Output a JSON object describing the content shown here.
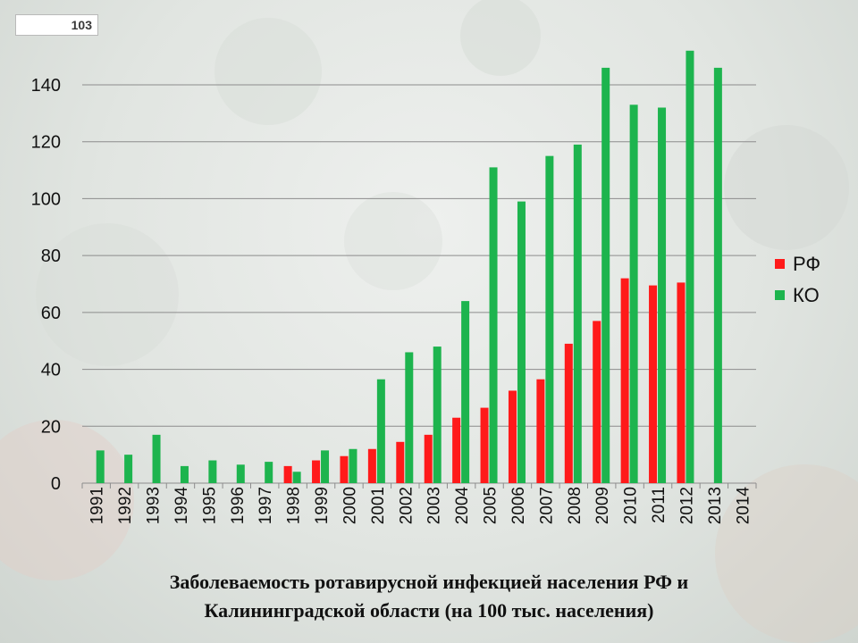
{
  "slide_number": "103",
  "caption": {
    "line1": "Заболеваемость ротавирусной инфекцией населения РФ и",
    "line2": "Калининградской области (на 100 тыс. населения)"
  },
  "colors": {
    "rf": "#ff1a1a",
    "ko": "#1db44e",
    "grid": "#8c8c8c"
  },
  "chart_data": {
    "type": "bar",
    "categories": [
      "1991",
      "1992",
      "1993",
      "1994",
      "1995",
      "1996",
      "1997",
      "1998",
      "1999",
      "2000",
      "2001",
      "2002",
      "2003",
      "2004",
      "2005",
      "2006",
      "2007",
      "2008",
      "2009",
      "2010",
      "2011",
      "2012",
      "2013",
      "2014"
    ],
    "series": [
      {
        "name": "РФ",
        "values": [
          null,
          null,
          null,
          null,
          null,
          null,
          null,
          6,
          8,
          9.5,
          12,
          14.5,
          17,
          23,
          26.5,
          32.5,
          36.5,
          49,
          57,
          72,
          69.5,
          70.5,
          null,
          null
        ]
      },
      {
        "name": "КО",
        "values": [
          11.5,
          10,
          17,
          6,
          8,
          6.5,
          7.5,
          4,
          11.5,
          12,
          36.5,
          46,
          48,
          64,
          111,
          99,
          115,
          119,
          146,
          133,
          132,
          152,
          146,
          null
        ]
      }
    ],
    "ylim": [
      0,
      150
    ],
    "yticks": [
      0,
      20,
      40,
      60,
      80,
      100,
      120,
      140
    ],
    "xlabel": "",
    "ylabel": "",
    "grid": true,
    "legend": "right"
  }
}
